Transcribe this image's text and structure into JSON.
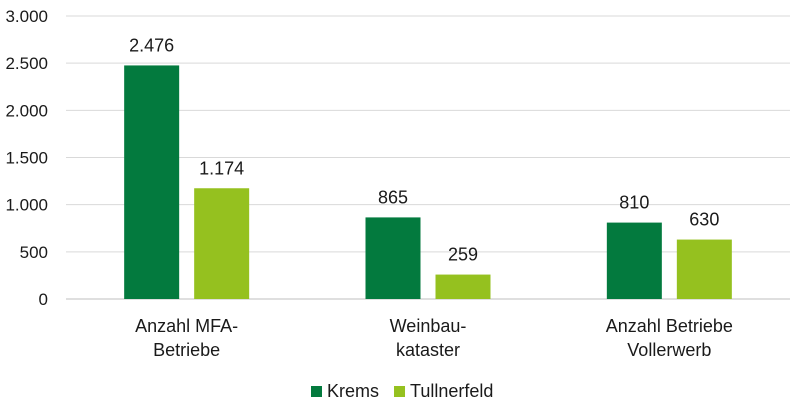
{
  "chart_data": {
    "type": "bar",
    "categories": [
      [
        "Anzahl MFA-",
        "Betriebe"
      ],
      [
        "Weinbau-",
        "kataster"
      ],
      [
        "Anzahl Betriebe",
        "Vollerwerb"
      ]
    ],
    "series": [
      {
        "name": "Krems",
        "values": [
          2476,
          865,
          810
        ],
        "labels": [
          "2.476",
          "865",
          "810"
        ],
        "color": "#037a3e"
      },
      {
        "name": "Tullnerfeld",
        "values": [
          1174,
          259,
          630
        ],
        "labels": [
          "1.174",
          "259",
          "630"
        ],
        "color": "#95c11f"
      }
    ],
    "yticks": [
      {
        "value": 0,
        "label": "0"
      },
      {
        "value": 500,
        "label": "500"
      },
      {
        "value": 1000,
        "label": "1.000"
      },
      {
        "value": 1500,
        "label": "1.500"
      },
      {
        "value": 2000,
        "label": "2.000"
      },
      {
        "value": 2500,
        "label": "2.500"
      },
      {
        "value": 3000,
        "label": "3.000"
      }
    ],
    "ylim": [
      0,
      3000
    ],
    "grid": true,
    "legend_position": "bottom"
  }
}
